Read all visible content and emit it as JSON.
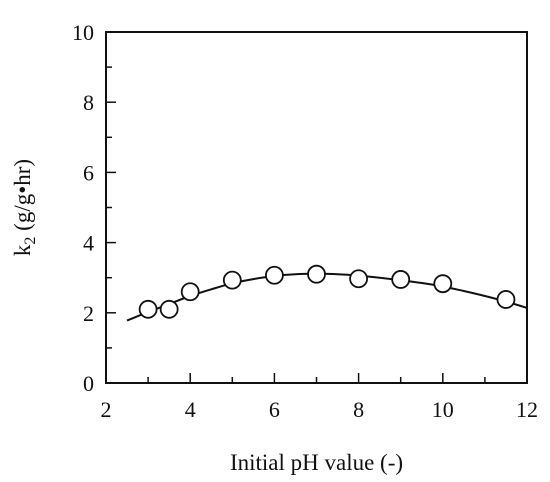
{
  "chart_data": {
    "type": "scatter",
    "title": "",
    "xlabel": "Initial pH value (-)",
    "ylabel_main": "k",
    "ylabel_sub": "2",
    "ylabel_rest": " (g/g•hr)",
    "xlim": [
      2,
      12
    ],
    "ylim": [
      0,
      10
    ],
    "x_ticks": [
      2,
      4,
      6,
      8,
      10,
      12
    ],
    "y_ticks": [
      0,
      2,
      4,
      6,
      8,
      10
    ],
    "grid": false,
    "series": [
      {
        "values": [
          {
            "x": 3.0,
            "y": 2.1
          },
          {
            "x": 3.5,
            "y": 2.1
          },
          {
            "x": 4.0,
            "y": 2.6
          },
          {
            "x": 5.0,
            "y": 2.93
          },
          {
            "x": 6.0,
            "y": 3.07
          },
          {
            "x": 7.0,
            "y": 3.1
          },
          {
            "x": 8.0,
            "y": 2.97
          },
          {
            "x": 9.0,
            "y": 2.95
          },
          {
            "x": 10.0,
            "y": 2.83
          },
          {
            "x": 11.5,
            "y": 2.38
          }
        ]
      }
    ],
    "fit_curve": [
      {
        "x": 2.5,
        "y": 1.78
      },
      {
        "x": 3.0,
        "y": 2.02
      },
      {
        "x": 3.5,
        "y": 2.25
      },
      {
        "x": 4.0,
        "y": 2.48
      },
      {
        "x": 4.5,
        "y": 2.67
      },
      {
        "x": 5.0,
        "y": 2.84
      },
      {
        "x": 5.5,
        "y": 2.96
      },
      {
        "x": 6.0,
        "y": 3.05
      },
      {
        "x": 6.5,
        "y": 3.1
      },
      {
        "x": 7.0,
        "y": 3.11
      },
      {
        "x": 7.5,
        "y": 3.1
      },
      {
        "x": 8.0,
        "y": 3.06
      },
      {
        "x": 8.5,
        "y": 3.0
      },
      {
        "x": 9.0,
        "y": 2.93
      },
      {
        "x": 9.5,
        "y": 2.85
      },
      {
        "x": 10.0,
        "y": 2.75
      },
      {
        "x": 10.5,
        "y": 2.62
      },
      {
        "x": 11.0,
        "y": 2.48
      },
      {
        "x": 11.5,
        "y": 2.32
      },
      {
        "x": 12.0,
        "y": 2.14
      }
    ]
  }
}
